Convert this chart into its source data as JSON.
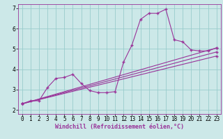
{
  "background_color": "#cce8e8",
  "line_color": "#993399",
  "marker": "+",
  "markersize": 3,
  "linewidth": 0.8,
  "xlabel": "Windchill (Refroidissement éolien,°C)",
  "xlim": [
    -0.5,
    23.5
  ],
  "ylim": [
    1.8,
    7.2
  ],
  "xticks": [
    0,
    1,
    2,
    3,
    4,
    5,
    6,
    7,
    8,
    9,
    10,
    11,
    12,
    13,
    14,
    15,
    16,
    17,
    18,
    19,
    20,
    21,
    22,
    23
  ],
  "yticks": [
    2,
    3,
    4,
    5,
    6,
    7
  ],
  "grid_color": "#99cccc",
  "series1_x": [
    0,
    1,
    2,
    3,
    4,
    5,
    6,
    7,
    8,
    9,
    10,
    11,
    12,
    13,
    14,
    15,
    16,
    17,
    18,
    19,
    20,
    21,
    22,
    23
  ],
  "series1_y": [
    2.3,
    2.45,
    2.45,
    3.1,
    3.55,
    3.6,
    3.75,
    3.3,
    2.95,
    2.85,
    2.85,
    2.9,
    4.35,
    5.2,
    6.45,
    6.75,
    6.75,
    6.95,
    5.45,
    5.35,
    4.95,
    4.9,
    4.9,
    5.05
  ],
  "series2_x": [
    0,
    23
  ],
  "series2_y": [
    2.3,
    5.05
  ],
  "series3_x": [
    0,
    23
  ],
  "series3_y": [
    2.3,
    4.85
  ],
  "series4_x": [
    0,
    23
  ],
  "series4_y": [
    2.3,
    4.65
  ],
  "xlabel_fontsize": 6,
  "tick_fontsize": 5.5,
  "xlabel_color": "#993399"
}
